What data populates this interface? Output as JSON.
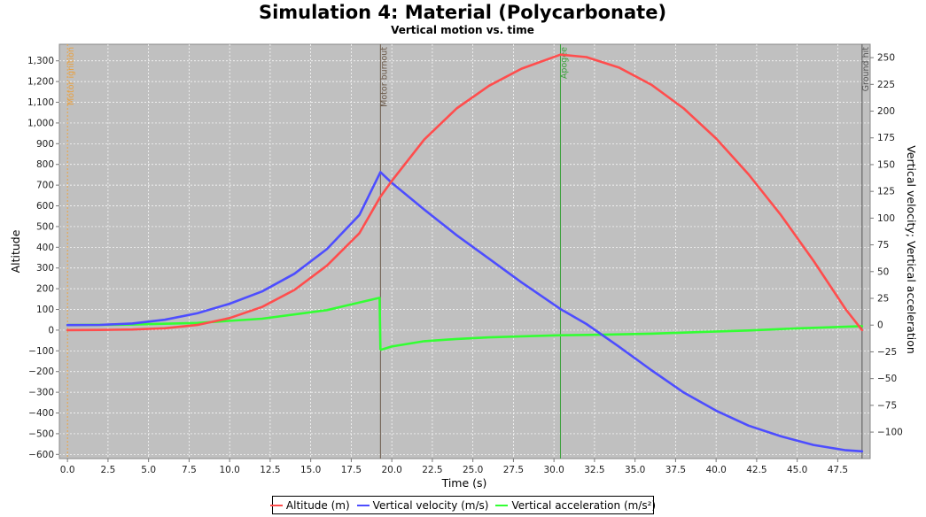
{
  "chart_data": {
    "type": "line",
    "title": "Simulation 4: Material (Polycarbonate)",
    "subtitle": "Vertical motion vs. time",
    "xlabel": "Time (s)",
    "ylabel_left": "Altitude",
    "ylabel_right": "Vertical velocity; Vertical acceleration",
    "xlim": [
      -0.5,
      49.5
    ],
    "ylim_left": [
      -620,
      1380
    ],
    "ylim_right": [
      -124.76,
      262.5
    ],
    "x_ticks": [
      "0.0",
      "2.5",
      "5.0",
      "7.5",
      "10.0",
      "12.5",
      "15.0",
      "17.5",
      "20.0",
      "22.5",
      "25.0",
      "27.5",
      "30.0",
      "32.5",
      "35.0",
      "37.5",
      "40.0",
      "42.5",
      "45.0",
      "47.5"
    ],
    "y_left_ticks": [
      "1,300",
      "1,200",
      "1,100",
      "1,000",
      "900",
      "800",
      "700",
      "600",
      "500",
      "400",
      "300",
      "200",
      "100",
      "0",
      "−100",
      "−200",
      "−300",
      "−400",
      "−500",
      "−600"
    ],
    "y_right_ticks": [
      "250",
      "225",
      "200",
      "175",
      "150",
      "125",
      "100",
      "75",
      "50",
      "25",
      "0",
      "−25",
      "−50",
      "−75",
      "−100"
    ],
    "grid": true,
    "legend_position": "bottom",
    "background": "#c0c0c0",
    "events": [
      {
        "label": "Motor ignition",
        "x": 0.0,
        "color": "#e8a040"
      },
      {
        "label": "Motor burnout",
        "x": 19.3,
        "color": "#6b5a4a"
      },
      {
        "label": "Apogee",
        "x": 30.4,
        "color": "#3aa03a"
      },
      {
        "label": "Ground hit",
        "x": 49.0,
        "color": "#555555"
      }
    ],
    "series": [
      {
        "name": "Altitude (m)",
        "axis": "left",
        "color": "#ff4d4d",
        "x": [
          0,
          2,
          4,
          6,
          8,
          10,
          12,
          14,
          16,
          18,
          19.3,
          20,
          22,
          24,
          26,
          28,
          30.4,
          32,
          34,
          36,
          38,
          40,
          42,
          44,
          46,
          48,
          49
        ],
        "y": [
          0,
          1,
          3,
          9,
          25,
          58,
          112,
          194,
          311,
          468,
          644,
          720,
          920,
          1070,
          1180,
          1262,
          1330,
          1318,
          1268,
          1185,
          1070,
          925,
          752,
          555,
          335,
          100,
          0
        ]
      },
      {
        "name": "Vertical velocity (m/s)",
        "axis": "right",
        "color": "#4d4dff",
        "x": [
          0,
          2,
          4,
          6,
          8,
          10,
          12,
          14,
          16,
          18,
          19.3,
          20,
          22,
          24,
          26,
          28,
          30.4,
          32,
          34,
          36,
          38,
          40,
          42,
          44,
          46,
          48,
          49
        ],
        "y": [
          0,
          0.2,
          1.5,
          5,
          11,
          20,
          31.5,
          48,
          71,
          103,
          143,
          133,
          108,
          84,
          62,
          40,
          15,
          1,
          -20,
          -42,
          -63,
          -80,
          -94,
          -104,
          -112,
          -117,
          -118
        ]
      },
      {
        "name": "Vertical acceleration (m/s²)",
        "axis": "right",
        "color": "#33ff33",
        "x": [
          0,
          4,
          8,
          12,
          16,
          19.25,
          19.3,
          19.35,
          20,
          22,
          24,
          26,
          28,
          30.4,
          33,
          36,
          39,
          42,
          45,
          49
        ],
        "y": [
          0,
          0.5,
          2,
          6,
          14,
          25.5,
          -22.5,
          -23,
          -20,
          -15,
          -13,
          -11.5,
          -10.5,
          -9.5,
          -9,
          -8,
          -6.5,
          -5,
          -3,
          -1
        ]
      }
    ]
  }
}
